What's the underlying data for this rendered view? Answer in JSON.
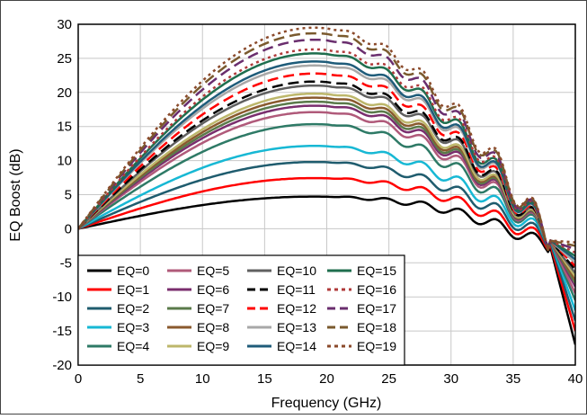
{
  "chart_data": {
    "type": "line",
    "title": "",
    "xlabel": "Frequency (GHz)",
    "ylabel": "EQ Boost (dB)",
    "xlim": [
      0,
      40
    ],
    "ylim": [
      -20,
      30
    ],
    "x_ticks": [
      0,
      5,
      10,
      15,
      20,
      25,
      30,
      35,
      40
    ],
    "y_ticks": [
      -20,
      -15,
      -10,
      -5,
      0,
      5,
      10,
      15,
      20,
      25,
      30
    ],
    "grid": true,
    "legend_position": "bottom-left",
    "x": [
      0,
      1,
      2,
      3,
      4,
      5,
      6,
      7,
      8,
      9,
      10,
      11,
      12,
      13,
      14,
      15,
      16,
      17,
      18,
      19,
      20,
      21,
      22,
      23,
      24,
      25,
      26,
      27,
      28,
      29,
      30,
      31,
      32,
      33,
      34,
      35,
      36,
      37,
      38,
      39,
      40
    ],
    "series": [
      {
        "name": "EQ=0",
        "color": "#000000",
        "dash": "solid",
        "peak": 4,
        "end": -17
      },
      {
        "name": "EQ=1",
        "color": "#ff0000",
        "dash": "solid",
        "peak": 6.3,
        "end": -15
      },
      {
        "name": "EQ=2",
        "color": "#1f5c6e",
        "dash": "solid",
        "peak": 8.3,
        "end": -13.5
      },
      {
        "name": "EQ=3",
        "color": "#17b8d4",
        "dash": "solid",
        "peak": 10.3,
        "end": -12
      },
      {
        "name": "EQ=4",
        "color": "#2e7a66",
        "dash": "solid",
        "peak": 13,
        "end": -10.5
      },
      {
        "name": "EQ=5",
        "color": "#b05a7a",
        "dash": "solid",
        "peak": 14.5,
        "end": -9.5
      },
      {
        "name": "EQ=6",
        "color": "#7a2e6e",
        "dash": "solid",
        "peak": 15.3,
        "end": -8.5
      },
      {
        "name": "EQ=7",
        "color": "#5a7a4a",
        "dash": "solid",
        "peak": 15.8,
        "end": -8
      },
      {
        "name": "EQ=8",
        "color": "#8a5a2e",
        "dash": "solid",
        "peak": 16.3,
        "end": -7.5
      },
      {
        "name": "EQ=9",
        "color": "#bdb76b",
        "dash": "solid",
        "peak": 16.8,
        "end": -7
      },
      {
        "name": "EQ=10",
        "color": "#606060",
        "dash": "solid",
        "peak": 17.8,
        "end": -6.5
      },
      {
        "name": "EQ=11",
        "color": "#000000",
        "dash": "longdash",
        "peak": 18.3,
        "end": -6
      },
      {
        "name": "EQ=12",
        "color": "#ff0000",
        "dash": "longdash",
        "peak": 19.3,
        "end": -5.5
      },
      {
        "name": "EQ=13",
        "color": "#a8a8a8",
        "dash": "solid",
        "peak": 20.3,
        "end": -5
      },
      {
        "name": "EQ=14",
        "color": "#1f5c7a",
        "dash": "solid",
        "peak": 20.8,
        "end": -4.5
      },
      {
        "name": "EQ=15",
        "color": "#1f6e4e",
        "dash": "solid",
        "peak": 21.8,
        "end": -4
      },
      {
        "name": "EQ=16",
        "color": "#b03a3a",
        "dash": "dot",
        "peak": 22.3,
        "end": -3.5
      },
      {
        "name": "EQ=17",
        "color": "#6a2e6e",
        "dash": "longdash",
        "peak": 23.5,
        "end": -3
      },
      {
        "name": "EQ=18",
        "color": "#7a5a2e",
        "dash": "longdash",
        "peak": 24.3,
        "end": -2.5
      },
      {
        "name": "EQ=19",
        "color": "#8b4a2b",
        "dash": "dot",
        "peak": 25,
        "end": -2
      }
    ]
  }
}
